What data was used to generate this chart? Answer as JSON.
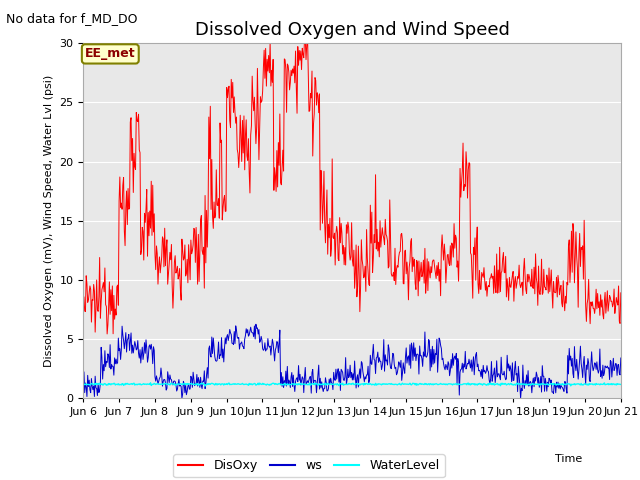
{
  "title": "Dissolved Oxygen and Wind Speed",
  "subtitle": "No data for f_MD_DO",
  "xlabel": "Time",
  "ylabel": "Dissolved Oxygen (mV), Wind Speed, Water Lvl (psi)",
  "xlim": [
    6,
    21
  ],
  "ylim": [
    0,
    30
  ],
  "yticks": [
    0,
    5,
    10,
    15,
    20,
    25,
    30
  ],
  "xtick_positions": [
    6,
    7,
    8,
    9,
    10,
    11,
    12,
    13,
    14,
    15,
    16,
    17,
    18,
    19,
    20,
    21
  ],
  "xtick_labels": [
    "Jun 6",
    "Jun 7",
    "Jun 8",
    "Jun 9",
    "Jun 10",
    "Jun 11",
    "Jun 12",
    "Jun 13",
    "Jun 14",
    "Jun 15",
    "Jun 16",
    "Jun 17",
    "Jun 18",
    "Jun 19",
    "Jun 20",
    "Jun 21"
  ],
  "legend_labels": [
    "DisOxy",
    "ws",
    "WaterLevel"
  ],
  "legend_colors": [
    "red",
    "#0000cc",
    "cyan"
  ],
  "annotation_text": "EE_met",
  "bg_color": "#e8e8e8",
  "title_fontsize": 13,
  "label_fontsize": 8,
  "tick_fontsize": 8,
  "subtitle_fontsize": 9
}
